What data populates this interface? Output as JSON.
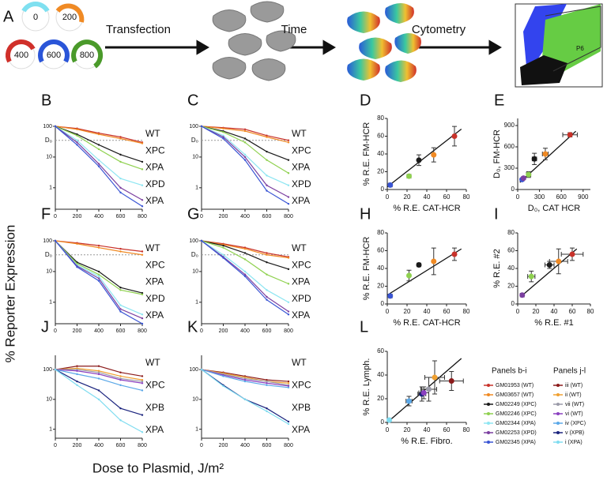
{
  "panel_a": {
    "letter": "A",
    "doses": [
      0,
      200,
      400,
      600,
      800
    ],
    "steps": [
      "Transfection",
      "Time",
      "Cytometry"
    ],
    "gate": "P6"
  },
  "y_label": "% Reporter Expression",
  "x_label": "Dose to Plasmid, J/m²",
  "chart_data": [
    {
      "panel": "B",
      "type": "line",
      "log_y": true,
      "x": [
        0,
        200,
        400,
        600,
        800
      ],
      "xlim": [
        0,
        800
      ],
      "xticks": [
        0,
        200,
        400,
        600,
        800
      ],
      "ylim": [
        0.2,
        100
      ],
      "yticks": [
        1,
        10,
        100
      ],
      "d0": {
        "label": "D₀",
        "value": 35
      },
      "end_labels": [
        "WT",
        "XPC",
        "XPA",
        "XPD",
        "XPA"
      ],
      "series": [
        {
          "color": "#c8322a",
          "values": [
            100,
            85,
            60,
            45,
            30
          ]
        },
        {
          "color": "#f08a24",
          "values": [
            100,
            80,
            55,
            40,
            28
          ]
        },
        {
          "color": "#1a1a1a",
          "values": [
            100,
            55,
            25,
            12,
            7
          ]
        },
        {
          "color": "#8fd14f",
          "values": [
            100,
            50,
            18,
            7,
            4
          ]
        },
        {
          "color": "#8ee6f2",
          "values": [
            100,
            35,
            8,
            2,
            1.2
          ]
        },
        {
          "color": "#7b3fa0",
          "values": [
            100,
            30,
            6,
            1,
            0.4
          ]
        },
        {
          "color": "#3a55d4",
          "values": [
            100,
            25,
            5,
            0.7,
            0.25
          ]
        }
      ]
    },
    {
      "panel": "C",
      "type": "line",
      "log_y": true,
      "x": [
        0,
        200,
        400,
        600,
        800
      ],
      "xlim": [
        0,
        800
      ],
      "xticks": [
        0,
        200,
        400,
        600,
        800
      ],
      "ylim": [
        0.2,
        100
      ],
      "yticks": [
        1,
        10,
        100
      ],
      "d0": {
        "label": "D₀",
        "value": 35
      },
      "end_labels": [
        "WT",
        "XPC",
        "XPA",
        "XPD",
        "XPA"
      ],
      "series": [
        {
          "color": "#c8322a",
          "values": [
            100,
            90,
            80,
            50,
            35
          ]
        },
        {
          "color": "#f08a24",
          "values": [
            100,
            85,
            70,
            45,
            30
          ]
        },
        {
          "color": "#1a1a1a",
          "values": [
            100,
            70,
            40,
            15,
            8
          ]
        },
        {
          "color": "#8fd14f",
          "values": [
            100,
            65,
            30,
            8,
            3
          ]
        },
        {
          "color": "#8ee6f2",
          "values": [
            100,
            50,
            12,
            2.5,
            1.2
          ]
        },
        {
          "color": "#7b3fa0",
          "values": [
            100,
            45,
            10,
            1.2,
            0.5
          ]
        },
        {
          "color": "#3a55d4",
          "values": [
            100,
            40,
            8,
            0.8,
            0.3
          ]
        }
      ]
    },
    {
      "panel": "D",
      "type": "scatter",
      "xlim": [
        0,
        80
      ],
      "xticks": [
        0,
        20,
        40,
        60,
        80
      ],
      "ylim": [
        0,
        80
      ],
      "yticks": [
        0,
        20,
        40,
        60,
        80
      ],
      "x_label": "% R.E. CAT-HCR",
      "y_label": "% R.E. FM-HCR",
      "x": [
        3,
        22,
        32,
        47,
        68
      ],
      "y": [
        5,
        15,
        33,
        39,
        60
      ],
      "yerr": [
        2,
        2,
        6,
        8,
        11
      ],
      "colors": [
        "#3a55d4",
        "#8fd14f",
        "#1a1a1a",
        "#f08a24",
        "#c8322a"
      ],
      "fit": {
        "x": [
          0,
          75
        ],
        "y": [
          3,
          68
        ]
      }
    },
    {
      "panel": "E",
      "type": "scatter",
      "xlim": [
        0,
        1000
      ],
      "xticks": [
        0,
        300,
        600,
        900
      ],
      "ylim": [
        0,
        1000
      ],
      "yticks": [
        0,
        300,
        600,
        900
      ],
      "x_label": "D₀, CAT HCR",
      "y_label": "D₀, FM-HCR",
      "x": [
        60,
        80,
        150,
        230,
        380,
        720
      ],
      "y": [
        140,
        160,
        210,
        430,
        500,
        770
      ],
      "yerr": [
        20,
        20,
        40,
        80,
        80,
        30
      ],
      "xerr": [
        10,
        10,
        30,
        30,
        40,
        100
      ],
      "colors": [
        "#3a55d4",
        "#7b3fa0",
        "#8fd14f",
        "#1a1a1a",
        "#f08a24",
        "#c8322a"
      ],
      "fit": {
        "x": [
          30,
          800
        ],
        "y": [
          100,
          820
        ]
      }
    },
    {
      "panel": "F",
      "type": "line",
      "log_y": true,
      "x": [
        0,
        200,
        400,
        600,
        800
      ],
      "xlim": [
        0,
        800
      ],
      "xticks": [
        0,
        200,
        400,
        600,
        800
      ],
      "ylim": [
        0.2,
        100
      ],
      "yticks": [
        1,
        10,
        100
      ],
      "d0": {
        "label": "D₀",
        "value": 35
      },
      "end_labels": [
        "WT",
        "XPC",
        "XPA",
        "XPD",
        "XPA"
      ],
      "series": [
        {
          "color": "#c8322a",
          "values": [
            100,
            85,
            70,
            55,
            45
          ]
        },
        {
          "color": "#f08a24",
          "values": [
            100,
            80,
            60,
            45,
            35
          ]
        },
        {
          "color": "#1a1a1a",
          "values": [
            100,
            20,
            10,
            3,
            2
          ]
        },
        {
          "color": "#8fd14f",
          "values": [
            100,
            18,
            8,
            2.5,
            1.8
          ]
        },
        {
          "color": "#8ee6f2",
          "values": [
            100,
            16,
            7,
            0.8,
            0.4
          ]
        },
        {
          "color": "#7b3fa0",
          "values": [
            100,
            15,
            6,
            0.6,
            0.3
          ]
        },
        {
          "color": "#3a55d4",
          "values": [
            100,
            14,
            5,
            0.5,
            0.2
          ]
        }
      ]
    },
    {
      "panel": "G",
      "type": "line",
      "log_y": true,
      "x": [
        0,
        200,
        400,
        600,
        800
      ],
      "xlim": [
        0,
        800
      ],
      "xticks": [
        0,
        200,
        400,
        600,
        800
      ],
      "ylim": [
        0.2,
        100
      ],
      "yticks": [
        1,
        10,
        100
      ],
      "d0": {
        "label": "D₀",
        "value": 35
      },
      "end_labels": [
        "WT",
        "XPC",
        "XPA",
        "XPD",
        "XPA"
      ],
      "series": [
        {
          "color": "#c8322a",
          "values": [
            100,
            80,
            60,
            40,
            30
          ]
        },
        {
          "color": "#f08a24",
          "values": [
            100,
            75,
            55,
            35,
            28
          ]
        },
        {
          "color": "#1a1a1a",
          "values": [
            100,
            70,
            40,
            20,
            12
          ]
        },
        {
          "color": "#8fd14f",
          "values": [
            100,
            60,
            25,
            8,
            4
          ]
        },
        {
          "color": "#8ee6f2",
          "values": [
            100,
            35,
            10,
            2.5,
            1
          ]
        },
        {
          "color": "#7b3fa0",
          "values": [
            100,
            30,
            8,
            1.5,
            0.5
          ]
        },
        {
          "color": "#3a55d4",
          "values": [
            100,
            28,
            7,
            1.2,
            0.4
          ]
        }
      ]
    },
    {
      "panel": "H",
      "type": "scatter",
      "xlim": [
        0,
        80
      ],
      "xticks": [
        0,
        20,
        40,
        60,
        80
      ],
      "ylim": [
        0,
        80
      ],
      "yticks": [
        0,
        20,
        40,
        60,
        80
      ],
      "x_label": "% R.E. CAT-HCR",
      "y_label": "% R.E. FM-HCR",
      "x": [
        3,
        22,
        32,
        47,
        68
      ],
      "y": [
        9,
        32,
        44,
        48,
        56
      ],
      "yerr": [
        2,
        6,
        2,
        15,
        7
      ],
      "colors": [
        "#3a55d4",
        "#8fd14f",
        "#1a1a1a",
        "#f08a24",
        "#c8322a"
      ],
      "fit": {
        "x": [
          0,
          75
        ],
        "y": [
          10,
          62
        ]
      }
    },
    {
      "panel": "I",
      "type": "scatter",
      "xlim": [
        0,
        80
      ],
      "xticks": [
        0,
        20,
        40,
        60,
        80
      ],
      "ylim": [
        0,
        80
      ],
      "yticks": [
        0,
        20,
        40,
        60,
        80
      ],
      "x_label": "% R.E. #1",
      "y_label": "% R.E. #2",
      "x": [
        5,
        15,
        35,
        45,
        60
      ],
      "y": [
        10,
        31,
        44,
        48,
        56
      ],
      "yerr": [
        2,
        6,
        4,
        14,
        7
      ],
      "xerr": [
        1,
        4,
        5,
        10,
        12
      ],
      "colors": [
        "#7b3fa0",
        "#8fd14f",
        "#1a1a1a",
        "#f08a24",
        "#c8322a"
      ],
      "fit": {
        "x": [
          3,
          65
        ],
        "y": [
          8,
          62
        ]
      }
    },
    {
      "panel": "J",
      "type": "line",
      "log_y": true,
      "x": [
        0,
        200,
        400,
        600,
        800
      ],
      "xlim": [
        0,
        800
      ],
      "xticks": [
        0,
        200,
        400,
        600,
        800
      ],
      "ylim": [
        0.5,
        300
      ],
      "yticks": [
        1,
        10,
        100
      ],
      "end_labels": [
        "WT",
        "XPC",
        "XPB",
        "XPA"
      ],
      "series": [
        {
          "color": "#8b1a1a",
          "values": [
            100,
            130,
            130,
            80,
            60
          ]
        },
        {
          "color": "#f0a030",
          "values": [
            100,
            110,
            90,
            60,
            45
          ]
        },
        {
          "color": "#9a9aa8",
          "values": [
            100,
            100,
            80,
            50,
            40
          ]
        },
        {
          "color": "#8a3fc0",
          "values": [
            100,
            90,
            70,
            45,
            35
          ]
        },
        {
          "color": "#5aa8e8",
          "values": [
            100,
            70,
            50,
            30,
            20
          ]
        },
        {
          "color": "#1a237e",
          "values": [
            100,
            40,
            20,
            5,
            3
          ]
        },
        {
          "color": "#7fdcf0",
          "values": [
            100,
            30,
            10,
            2,
            0.8
          ]
        }
      ]
    },
    {
      "panel": "K",
      "type": "line",
      "log_y": true,
      "x": [
        0,
        200,
        400,
        600,
        800
      ],
      "xlim": [
        0,
        800
      ],
      "xticks": [
        0,
        200,
        400,
        600,
        800
      ],
      "ylim": [
        0.5,
        300
      ],
      "yticks": [
        1,
        10,
        100
      ],
      "end_labels": [
        "WT",
        "XPC",
        "XPB",
        "XPA"
      ],
      "series": [
        {
          "color": "#8b1a1a",
          "values": [
            100,
            80,
            60,
            45,
            40
          ]
        },
        {
          "color": "#f0a030",
          "values": [
            100,
            75,
            55,
            40,
            35
          ]
        },
        {
          "color": "#9a9aa8",
          "values": [
            100,
            70,
            50,
            40,
            30
          ]
        },
        {
          "color": "#8a3fc0",
          "values": [
            100,
            65,
            45,
            35,
            28
          ]
        },
        {
          "color": "#5aa8e8",
          "values": [
            100,
            60,
            40,
            30,
            25
          ]
        },
        {
          "color": "#1a237e",
          "values": [
            100,
            30,
            10,
            5,
            1.8
          ]
        },
        {
          "color": "#7fdcf0",
          "values": [
            100,
            28,
            10,
            4,
            1.5
          ]
        }
      ]
    },
    {
      "panel": "L",
      "type": "scatter",
      "xlim": [
        0,
        80
      ],
      "xticks": [
        0,
        20,
        40,
        60,
        80
      ],
      "ylim": [
        0,
        60
      ],
      "yticks": [
        0,
        20,
        40,
        60
      ],
      "x_label": "% R.E. Fibro.",
      "y_label": "% R.E. Lymph.",
      "x": [
        2,
        22,
        35,
        37,
        42,
        48,
        65
      ],
      "y": [
        2,
        18,
        24,
        25,
        28,
        38,
        35
      ],
      "yerr": [
        1,
        4,
        6,
        5,
        10,
        14,
        8
      ],
      "xerr": [
        1,
        3,
        4,
        5,
        8,
        10,
        12
      ],
      "colors": [
        "#7fdcf0",
        "#5aa8e8",
        "#1a237e",
        "#8a3fc0",
        "#9a9aa8",
        "#f0a030",
        "#8b1a1a"
      ],
      "fit": {
        "x": [
          0,
          75
        ],
        "y": [
          0,
          54
        ]
      }
    }
  ],
  "legends": [
    {
      "title": "Panels b-i",
      "entries": [
        "GM01953 (WT)",
        "GM03657 (WT)",
        "GM02249 (XPC)",
        "GM02246 (XPC)",
        "GM02344 (XPA)",
        "GM02253 (XPD)",
        "GM02345 (XPA)"
      ],
      "colors": [
        "#c8322a",
        "#f08a24",
        "#1a1a1a",
        "#8fd14f",
        "#8ee6f2",
        "#7b3fa0",
        "#3a55d4"
      ]
    },
    {
      "title": "Panels j-l",
      "entries": [
        "iii (WT)",
        "ii (WT)",
        "vii (WT)",
        "vi (WT)",
        "iv (XPC)",
        "v (XPB)",
        "i (XPA)"
      ],
      "colors": [
        "#8b1a1a",
        "#f0a030",
        "#9a9aa8",
        "#8a3fc0",
        "#5aa8e8",
        "#1a237e",
        "#7fdcf0"
      ]
    }
  ]
}
